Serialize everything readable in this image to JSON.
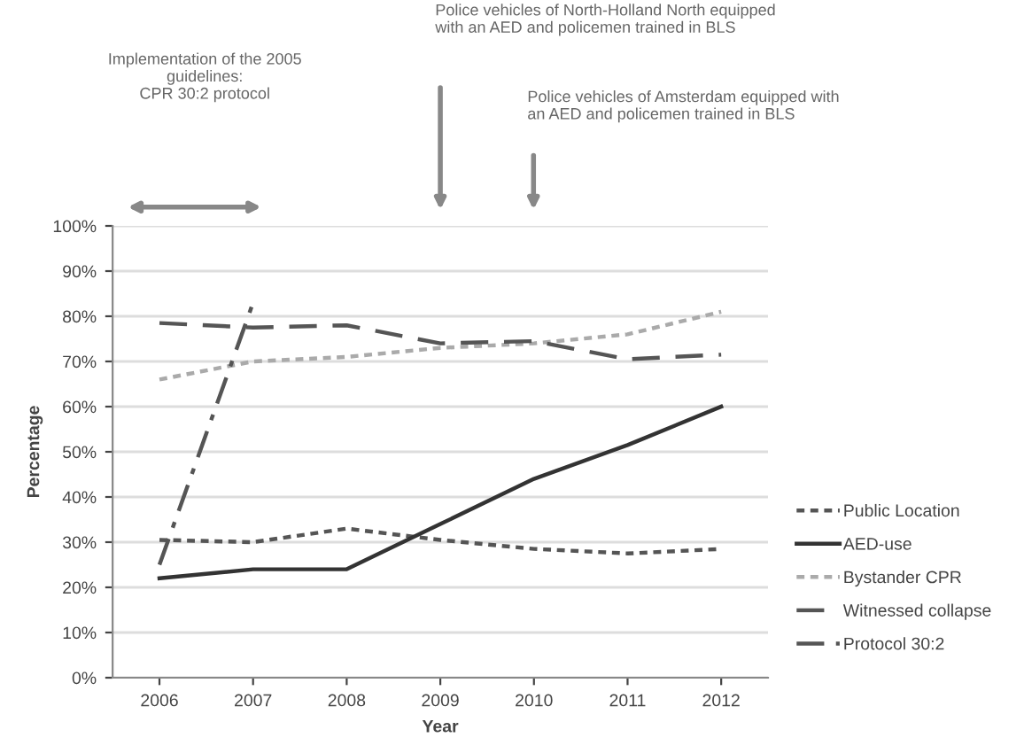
{
  "chart_data": {
    "type": "line",
    "xlabel": "Year",
    "ylabel": "Percentage",
    "categories": [
      "2006",
      "2007",
      "2008",
      "2009",
      "2010",
      "2011",
      "2012"
    ],
    "series": [
      {
        "name": "Public Location",
        "color": "#555555",
        "line_style": "dotted",
        "values": [
          30.5,
          30,
          33,
          30.5,
          28.5,
          27.5,
          28.5
        ]
      },
      {
        "name": "AED-use",
        "color": "#333333",
        "line_style": "solid",
        "values": [
          22,
          24,
          24,
          34,
          44,
          51.5,
          60
        ]
      },
      {
        "name": "Bystander CPR",
        "color": "#aaaaaa",
        "line_style": "dotted",
        "values": [
          66,
          70,
          71,
          73,
          74,
          76,
          81
        ]
      },
      {
        "name": "Witnessed collapse",
        "color": "#555555",
        "line_style": "dashed",
        "values": [
          78.5,
          77.5,
          78,
          74,
          74.5,
          70.5,
          71.5
        ]
      },
      {
        "name": "Protocol 30:2",
        "color": "#555555",
        "line_style": "dashdot",
        "values": [
          25,
          83,
          null,
          null,
          null,
          null,
          null
        ]
      }
    ],
    "ylim": [
      0,
      100
    ],
    "yticks": [
      {
        "value": 0,
        "label": "0%"
      },
      {
        "value": 10,
        "label": "10%"
      },
      {
        "value": 20,
        "label": "20%"
      },
      {
        "value": 30,
        "label": "30%"
      },
      {
        "value": 40,
        "label": "40%"
      },
      {
        "value": 50,
        "label": "50%"
      },
      {
        "value": 60,
        "label": "60%"
      },
      {
        "value": 70,
        "label": "70%"
      },
      {
        "value": 80,
        "label": "80%"
      },
      {
        "value": 90,
        "label": "90%"
      },
      {
        "value": 100,
        "label": "100%"
      }
    ],
    "grid": "y",
    "legend": "right",
    "annotations": [
      "Implementation of the 2005\nguidelines:\nCPR 30:2 protocol",
      "Police vehicles of North-Holland North equipped\nwith an AED and policemen trained in BLS",
      "Police vehicles of Amsterdam equipped with\nan AED and policemen trained in BLS"
    ]
  }
}
